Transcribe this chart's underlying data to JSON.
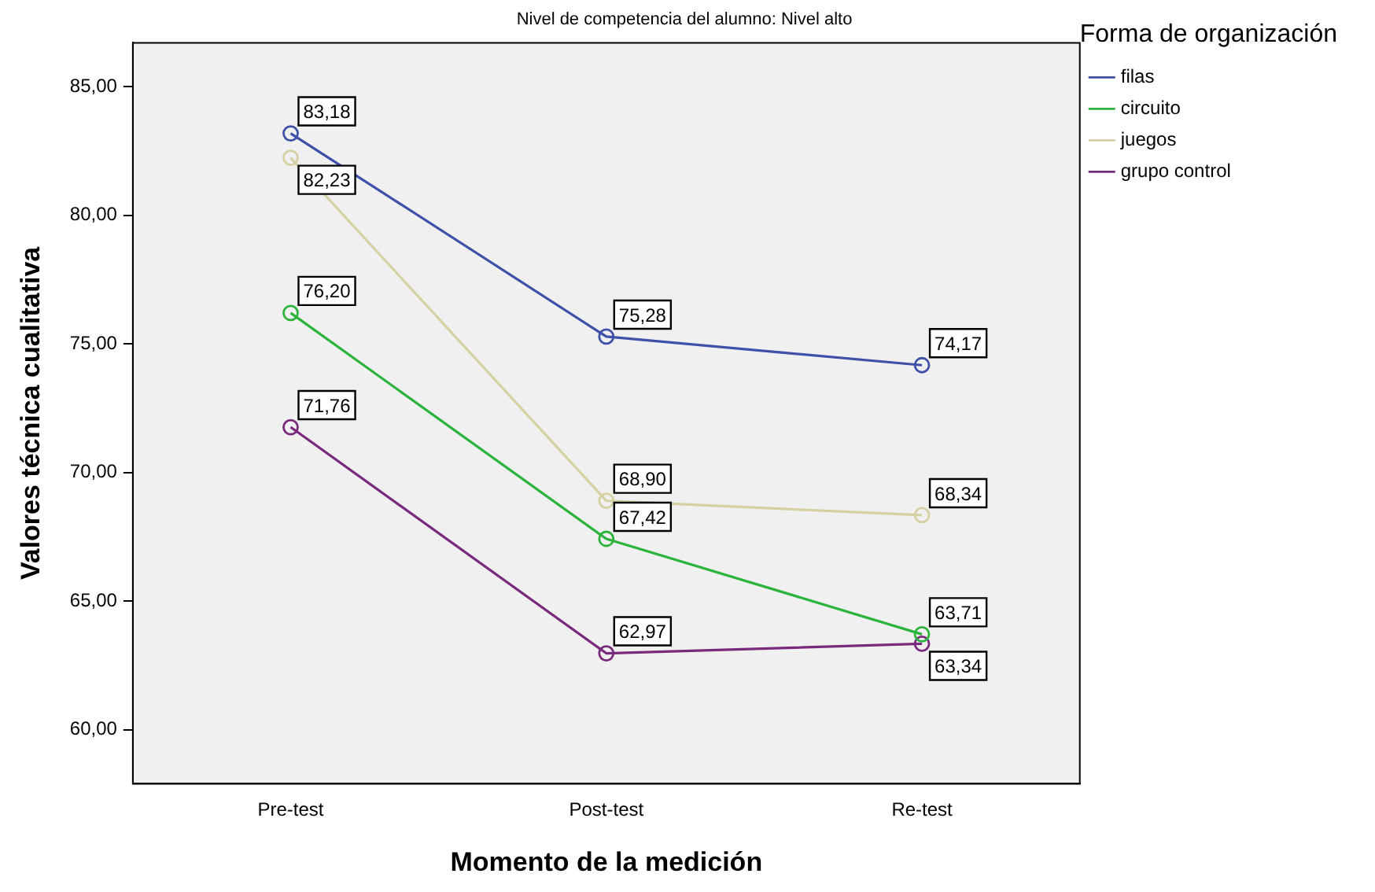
{
  "chart_data": {
    "type": "line",
    "title": "Nivel de competencia del alumno: Nivel alto",
    "xlabel": "Momento de la medición",
    "ylabel": "Valores técnica cualitativa",
    "legend_title": "Forma de organización",
    "legend": "right",
    "marker": "circle",
    "categories": [
      "Pre-test",
      "Post-test",
      "Re-test"
    ],
    "ylim": [
      57.9,
      86.7
    ],
    "yticks": [
      {
        "value": 60,
        "label": "60,00"
      },
      {
        "value": 65,
        "label": "65,00"
      },
      {
        "value": 70,
        "label": "70,00"
      },
      {
        "value": 75,
        "label": "75,00"
      },
      {
        "value": 80,
        "label": "80,00"
      },
      {
        "value": 85,
        "label": "85,00"
      }
    ],
    "series": [
      {
        "name": "filas",
        "color": "#3e50a8",
        "values": [
          83.18,
          75.28,
          74.17
        ],
        "value_labels": [
          "83,18",
          "75,28",
          "74,17"
        ]
      },
      {
        "name": "circuito",
        "color": "#2cb33c",
        "values": [
          76.2,
          67.42,
          63.71
        ],
        "value_labels": [
          "76,20",
          "67,42",
          "63,71"
        ]
      },
      {
        "name": "juegos",
        "color": "#d5d1a2",
        "values": [
          82.23,
          68.9,
          68.34
        ],
        "value_labels": [
          "82,23",
          "68,90",
          "68,34"
        ]
      },
      {
        "name": "grupo control",
        "color": "#7a2a7c",
        "values": [
          71.76,
          62.97,
          63.34
        ],
        "value_labels": [
          "71,76",
          "62,97",
          "63,34"
        ]
      }
    ]
  }
}
